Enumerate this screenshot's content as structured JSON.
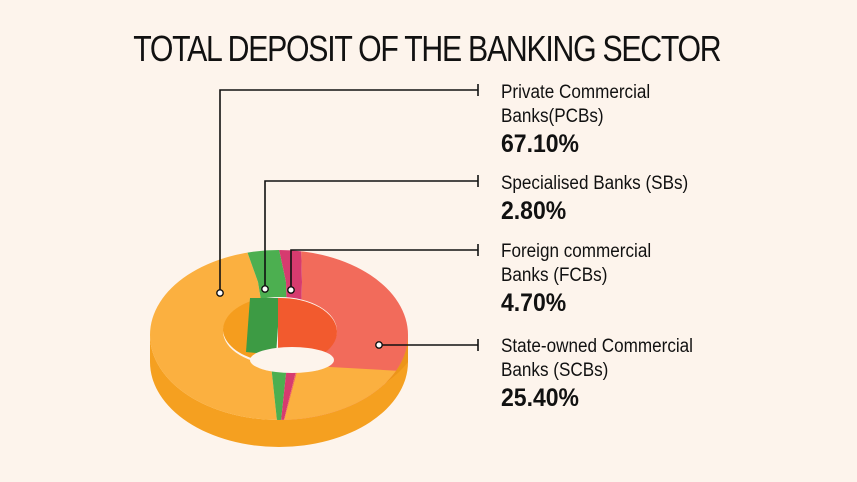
{
  "chart_data": {
    "type": "pie",
    "title": "TOTAL DEPOSIT OF THE BANKING SECTOR",
    "categories": [
      "Private Commercial Banks(PCBs)",
      "Specialised Banks (SBs)",
      "Foreign commercial Banks (FCBs)",
      "State-owned Commercial Banks (SCBs)"
    ],
    "labels": [
      "Private Commercial\nBanks(PCBs)",
      "Specialised Banks (SBs)",
      "Foreign commercial\nBanks (FCBs)",
      "State-owned Commercial\nBanks (SCBs)"
    ],
    "values": [
      67.1,
      2.8,
      4.7,
      25.4
    ],
    "value_labels": [
      "67.10%",
      "2.80%",
      "4.70%",
      "25.40%"
    ],
    "colors": [
      "#fbb040",
      "#4caf50",
      "#d63b6f",
      "#f26b5b"
    ],
    "style": "3d-donut"
  }
}
